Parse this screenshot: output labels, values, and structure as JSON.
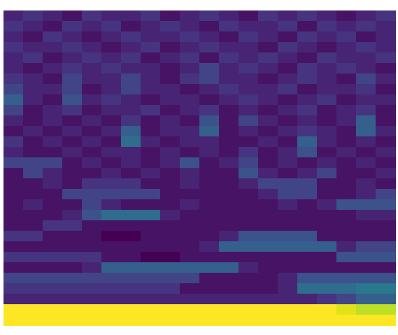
{
  "chart_data": {
    "type": "heatmap",
    "color": "viridis",
    "tick_labels": false,
    "cells": [
      [
        0.1,
        0.15,
        0.1,
        0.05,
        0.15,
        0.1,
        0.1,
        0.15,
        0.05,
        0.1,
        0.15,
        0.1,
        0.05,
        0.15,
        0.1,
        0.15,
        0.1,
        0.05,
        0.1,
        0.15
      ],
      [
        0.15,
        0.1,
        0.05,
        0.15,
        0.1,
        0.15,
        0.05,
        0.1,
        0.15,
        0.1,
        0.05,
        0.15,
        0.1,
        0.1,
        0.15,
        0.05,
        0.15,
        0.1,
        0.15,
        0.1
      ],
      [
        0.1,
        0.05,
        0.15,
        0.1,
        0.05,
        0.1,
        0.15,
        0.1,
        0.1,
        0.15,
        0.1,
        0.05,
        0.15,
        0.1,
        0.05,
        0.15,
        0.1,
        0.15,
        0.05,
        0.1
      ],
      [
        0.15,
        0.1,
        0.1,
        0.15,
        0.1,
        0.05,
        0.1,
        0.15,
        0.05,
        0.1,
        0.15,
        0.1,
        0.1,
        0.05,
        0.15,
        0.1,
        0.05,
        0.1,
        0.15,
        0.1
      ],
      [
        0.1,
        0.15,
        0.05,
        0.1,
        0.15,
        0.1,
        0.15,
        0.05,
        0.1,
        0.15,
        0.05,
        0.15,
        0.1,
        0.15,
        0.1,
        0.05,
        0.15,
        0.1,
        0.1,
        0.15
      ],
      [
        0.1,
        0.05,
        0.1,
        0.15,
        0.1,
        0.15,
        0.1,
        0.1,
        0.05,
        0.1,
        0.2,
        0.1,
        0.15,
        0.1,
        0.05,
        0.15,
        0.1,
        0.15,
        0.1,
        0.05
      ],
      [
        0.15,
        0.1,
        0.05,
        0.2,
        0.1,
        0.1,
        0.2,
        0.1,
        0.05,
        0.15,
        0.2,
        0.1,
        0.1,
        0.05,
        0.1,
        0.15,
        0.1,
        0.05,
        0.2,
        0.1
      ],
      [
        0.2,
        0.1,
        0.1,
        0.2,
        0.05,
        0.1,
        0.2,
        0.1,
        0.1,
        0.05,
        0.1,
        0.15,
        0.1,
        0.1,
        0.15,
        0.05,
        0.1,
        0.1,
        0.15,
        0.05
      ],
      [
        0.3,
        0.1,
        0.05,
        0.25,
        0.1,
        0.15,
        0.1,
        0.05,
        0.1,
        0.1,
        0.05,
        0.1,
        0.15,
        0.1,
        0.05,
        0.1,
        0.15,
        0.05,
        0.1,
        0.1
      ],
      [
        0.2,
        0.05,
        0.1,
        0.15,
        0.05,
        0.1,
        0.1,
        0.15,
        0.05,
        0.1,
        0.15,
        0.05,
        0.1,
        0.05,
        0.1,
        0.15,
        0.05,
        0.1,
        0.15,
        0.05
      ],
      [
        0.1,
        0.05,
        0.1,
        0.05,
        0.1,
        0.05,
        0.15,
        0.05,
        0.1,
        0.05,
        0.25,
        0.05,
        0.2,
        0.1,
        0.05,
        0.1,
        0.05,
        0.1,
        0.3,
        0.05
      ],
      [
        0.05,
        0.1,
        0.05,
        0.1,
        0.05,
        0.1,
        0.3,
        0.05,
        0.1,
        0.1,
        0.3,
        0.05,
        0.1,
        0.05,
        0.1,
        0.15,
        0.1,
        0.05,
        0.3,
        0.1
      ],
      [
        0.15,
        0.05,
        0.1,
        0.05,
        0.1,
        0.05,
        0.35,
        0.1,
        0.05,
        0.1,
        0.1,
        0.05,
        0.05,
        0.1,
        0.05,
        0.3,
        0.1,
        0.05,
        0.1,
        0.05
      ],
      [
        0.1,
        0.05,
        0.05,
        0.1,
        0.05,
        0.1,
        0.1,
        0.05,
        0.1,
        0.05,
        0.1,
        0.05,
        0.15,
        0.05,
        0.1,
        0.25,
        0.05,
        0.1,
        0.05,
        0.1
      ],
      [
        0.2,
        0.2,
        0.2,
        0.05,
        0.1,
        0.05,
        0.1,
        0.05,
        0.1,
        0.25,
        0.05,
        0.1,
        0.2,
        0.05,
        0.1,
        0.05,
        0.1,
        0.05,
        0.1,
        0.05
      ],
      [
        0.05,
        0.2,
        0.1,
        0.05,
        0.05,
        0.1,
        0.05,
        0.1,
        0.05,
        0.1,
        0.05,
        0.05,
        0.25,
        0.1,
        0.05,
        0.1,
        0.2,
        0.05,
        0.05,
        0.1
      ],
      [
        0.05,
        0.05,
        0.1,
        0.05,
        0.15,
        0.15,
        0.15,
        0.05,
        0.05,
        0.1,
        0.05,
        0.05,
        0.1,
        0.2,
        0.2,
        0.2,
        0.05,
        0.05,
        0.1,
        0.05
      ],
      [
        0.05,
        0.05,
        0.05,
        0.2,
        0.2,
        0.2,
        0.2,
        0.2,
        0.05,
        0.05,
        0.05,
        0.05,
        0.05,
        0.1,
        0.2,
        0.2,
        0.05,
        0.05,
        0.1,
        0.2
      ],
      [
        0.05,
        0.1,
        0.05,
        0.05,
        0.2,
        0.1,
        0.05,
        0.05,
        0.05,
        0.1,
        0.05,
        0.05,
        0.05,
        0.05,
        0.1,
        0.05,
        0.1,
        0.25,
        0.25,
        0.25
      ],
      [
        0.05,
        0.05,
        0.05,
        0.1,
        0.25,
        0.35,
        0.35,
        0.35,
        0.1,
        0.05,
        0.05,
        0.05,
        0.05,
        0.05,
        0.05,
        0.05,
        0.05,
        0.05,
        0.1,
        0.1
      ],
      [
        0.05,
        0.05,
        0.15,
        0.15,
        0.05,
        0.05,
        0.05,
        0.05,
        0.05,
        0.05,
        0.05,
        0.05,
        0.05,
        0.05,
        0.05,
        0.05,
        0.05,
        0.05,
        0.05,
        0.05
      ],
      [
        0.15,
        0.15,
        0.05,
        0.05,
        0.05,
        0,
        0,
        0.05,
        0.05,
        0.05,
        0.05,
        0.1,
        0.25,
        0.25,
        0.25,
        0.25,
        0.05,
        0.05,
        0.05,
        0.05
      ],
      [
        0.05,
        0.05,
        0.05,
        0.05,
        0.05,
        0.05,
        0.05,
        0.05,
        0.05,
        0.05,
        0.1,
        0.3,
        0.3,
        0.3,
        0.3,
        0.3,
        0.3,
        0.1,
        0.2,
        0.2
      ],
      [
        0.15,
        0.15,
        0.15,
        0.15,
        0.15,
        0.05,
        0.05,
        0,
        0,
        0.05,
        0.05,
        0.05,
        0.05,
        0.05,
        0.05,
        0.05,
        0.05,
        0.25,
        0.25,
        0.25
      ],
      [
        0.05,
        0.05,
        0.05,
        0.05,
        0.1,
        0.3,
        0.3,
        0.3,
        0.3,
        0.3,
        0.3,
        0.3,
        0.1,
        0.05,
        0.05,
        0.05,
        0.05,
        0.05,
        0.05,
        0.05
      ],
      [
        0.2,
        0.2,
        0.2,
        0.2,
        0.2,
        0.2,
        0.2,
        0.2,
        0.2,
        0.2,
        0.05,
        0.05,
        0.05,
        0.05,
        0.1,
        0.25,
        0.25,
        0.25,
        0.25,
        0.25
      ],
      [
        0.15,
        0.15,
        0.15,
        0.15,
        0.15,
        0.15,
        0.15,
        0.15,
        0.15,
        0.05,
        0.05,
        0.05,
        0.05,
        0.05,
        0.1,
        0.35,
        0.35,
        0.35,
        0.4,
        0.4
      ],
      [
        0.1,
        0.1,
        0.1,
        0.1,
        0.1,
        0.1,
        0.1,
        0.1,
        0.1,
        0.1,
        0.1,
        0.1,
        0.1,
        0.1,
        0.1,
        0.1,
        0.15,
        0.2,
        0.3,
        0.3
      ],
      [
        1,
        1,
        1,
        1,
        1,
        1,
        1,
        1,
        1,
        1,
        1,
        1,
        1,
        1,
        1,
        1,
        1,
        0.95,
        0.9,
        0.9
      ],
      [
        1,
        1,
        1,
        1,
        1,
        1,
        1,
        1,
        1,
        1,
        1,
        1,
        1,
        1,
        1,
        1,
        1,
        1,
        1,
        1
      ]
    ]
  }
}
